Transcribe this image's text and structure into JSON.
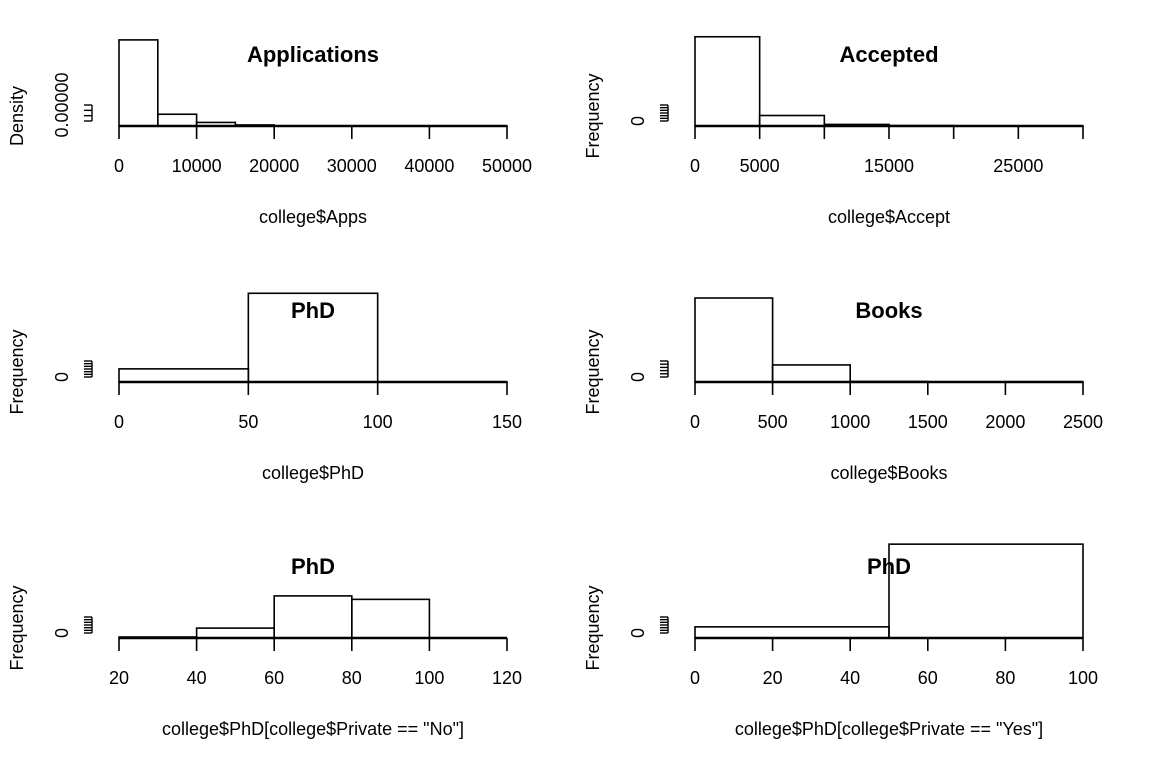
{
  "chart_data": [
    {
      "type": "bar",
      "title": "Applications",
      "xlabel": "college$Apps",
      "ylabel": "Density",
      "xlim": [
        0,
        50000
      ],
      "xticks": [
        0,
        10000,
        20000,
        30000,
        40000,
        50000
      ],
      "xtick_labels": [
        "0",
        "10000",
        "20000",
        "30000",
        "40000",
        "50000"
      ],
      "ylim": [
        0,
        0.00025
      ],
      "yticks": [
        0,
        5e-05,
        0.0001,
        0.00015
      ],
      "ytick_labels": [
        "0.00000",
        "",
        "",
        ""
      ],
      "bins": [
        {
          "from": 0,
          "to": 5000,
          "value": 0.000205
        },
        {
          "from": 5000,
          "to": 10000,
          "value": 2.8e-05
        },
        {
          "from": 10000,
          "to": 15000,
          "value": 8.5e-06
        },
        {
          "from": 15000,
          "to": 20000,
          "value": 2.5e-06
        },
        {
          "from": 20000,
          "to": 25000,
          "value": 5e-07
        },
        {
          "from": 25000,
          "to": 30000,
          "value": 3e-07
        },
        {
          "from": 30000,
          "to": 35000,
          "value": 0
        },
        {
          "from": 35000,
          "to": 40000,
          "value": 0
        },
        {
          "from": 40000,
          "to": 45000,
          "value": 0
        },
        {
          "from": 45000,
          "to": 50000,
          "value": 3e-07
        }
      ]
    },
    {
      "type": "bar",
      "title": "Accepted",
      "xlabel": "college$Accept",
      "ylabel": "Frequency",
      "xlim": [
        0,
        30000
      ],
      "xticks": [
        0,
        5000,
        10000,
        15000,
        20000,
        25000,
        30000
      ],
      "xtick_labels": [
        "0",
        "5000",
        "",
        "15000",
        "",
        "25000",
        ""
      ],
      "ylim": [
        0,
        800
      ],
      "yticks": [
        0,
        100,
        200,
        300,
        400,
        500,
        600
      ],
      "ytick_labels": [
        "0",
        "",
        "",
        "",
        "",
        "",
        ""
      ],
      "bins": [
        {
          "from": 0,
          "to": 5000,
          "value": 680
        },
        {
          "from": 5000,
          "to": 10000,
          "value": 80
        },
        {
          "from": 10000,
          "to": 15000,
          "value": 12
        },
        {
          "from": 15000,
          "to": 20000,
          "value": 3
        },
        {
          "from": 20000,
          "to": 25000,
          "value": 1
        },
        {
          "from": 25000,
          "to": 30000,
          "value": 1
        }
      ]
    },
    {
      "type": "bar",
      "title": "PhD",
      "xlabel": "college$PhD",
      "ylabel": "Frequency",
      "xlim": [
        0,
        150
      ],
      "xticks": [
        0,
        50,
        100,
        150
      ],
      "xtick_labels": [
        "0",
        "50",
        "100",
        "150"
      ],
      "ylim": [
        0,
        800
      ],
      "yticks": [
        0,
        100,
        200,
        300,
        400,
        500,
        600
      ],
      "ytick_labels": [
        "0",
        "",
        "",
        "",
        "",
        "",
        ""
      ],
      "bins": [
        {
          "from": 0,
          "to": 50,
          "value": 100
        },
        {
          "from": 50,
          "to": 100,
          "value": 676
        },
        {
          "from": 100,
          "to": 150,
          "value": 1
        }
      ]
    },
    {
      "type": "bar",
      "title": "Books",
      "xlabel": "college$Books",
      "ylabel": "Frequency",
      "xlim": [
        0,
        2500
      ],
      "xticks": [
        0,
        500,
        1000,
        1500,
        2000,
        2500
      ],
      "xtick_labels": [
        "0",
        "500",
        "1000",
        "1500",
        "2000",
        "2500"
      ],
      "ylim": [
        0,
        800
      ],
      "yticks": [
        0,
        100,
        200,
        300,
        400,
        500
      ],
      "ytick_labels": [
        "0",
        "",
        "",
        "",
        "",
        ""
      ],
      "bins": [
        {
          "from": 0,
          "to": 500,
          "value": 640
        },
        {
          "from": 500,
          "to": 1000,
          "value": 130
        },
        {
          "from": 1000,
          "to": 1500,
          "value": 4
        },
        {
          "from": 1500,
          "to": 2000,
          "value": 1
        },
        {
          "from": 2000,
          "to": 2500,
          "value": 2
        }
      ]
    },
    {
      "type": "bar",
      "title": "PhD",
      "xlabel": "college$PhD[college$Private == \"No\"]",
      "ylabel": "Frequency",
      "xlim": [
        20,
        120
      ],
      "xticks": [
        20,
        40,
        60,
        80,
        100,
        120
      ],
      "xtick_labels": [
        "20",
        "40",
        "60",
        "80",
        "100",
        "120"
      ],
      "ylim": [
        0,
        212
      ],
      "yticks": [
        0,
        25,
        50,
        75,
        100,
        125,
        150
      ],
      "ytick_labels": [
        "0",
        "",
        "",
        "",
        "",
        "",
        ""
      ],
      "bins": [
        {
          "from": 20,
          "to": 40,
          "value": 2
        },
        {
          "from": 40,
          "to": 60,
          "value": 20
        },
        {
          "from": 60,
          "to": 80,
          "value": 85
        },
        {
          "from": 80,
          "to": 100,
          "value": 78
        },
        {
          "from": 100,
          "to": 120,
          "value": 0
        }
      ]
    },
    {
      "type": "bar",
      "title": "PhD",
      "xlabel": "college$PhD[college$Private == \"Yes\"]",
      "ylabel": "Frequency",
      "xlim": [
        0,
        100
      ],
      "xticks": [
        0,
        20,
        40,
        60,
        80,
        100
      ],
      "xtick_labels": [
        "0",
        "20",
        "40",
        "60",
        "80",
        "100"
      ],
      "ylim": [
        0,
        565
      ],
      "yticks": [
        0,
        75,
        150,
        225,
        300,
        375,
        450
      ],
      "ytick_labels": [
        "0",
        "",
        "",
        "",
        "",
        "",
        ""
      ],
      "bins": [
        {
          "from": 0,
          "to": 50,
          "value": 60
        },
        {
          "from": 50,
          "to": 100,
          "value": 505
        }
      ]
    }
  ]
}
